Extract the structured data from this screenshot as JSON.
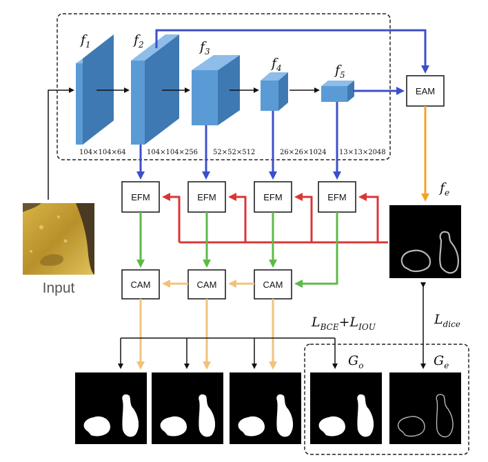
{
  "features": [
    {
      "sym": "f",
      "sub": "1",
      "dims": "104×104×64"
    },
    {
      "sym": "f",
      "sub": "2",
      "dims": "104×104×256"
    },
    {
      "sym": "f",
      "sub": "3",
      "dims": "52×52×512"
    },
    {
      "sym": "f",
      "sub": "4",
      "dims": "26×26×1024"
    },
    {
      "sym": "f",
      "sub": "5",
      "dims": "13×13×2048"
    }
  ],
  "modules": {
    "eam": "EAM",
    "efm": "EFM",
    "cam": "CAM"
  },
  "edge_feature": {
    "sym": "f",
    "sub": "e"
  },
  "input_label": "Input",
  "losses": {
    "bce_sym": "L",
    "bce_sub": "BCE",
    "plus": "+",
    "iou_sym": "L",
    "iou_sub": "IOU",
    "dice_sym": "L",
    "dice_sub": "dice"
  },
  "ground_truths": {
    "object": {
      "sym": "G",
      "sub": "o"
    },
    "edge": {
      "sym": "G",
      "sub": "e"
    }
  },
  "colors": {
    "blue_arrow": "#3c4fc9",
    "red_arrow": "#d93636",
    "green_arrow": "#5cba47",
    "orange_arrow": "#f4a12a",
    "tan_arrow": "#f2c27a",
    "block_front": "#5b9bd5",
    "block_side": "#3f79b3",
    "block_top": "#8dbde8"
  }
}
